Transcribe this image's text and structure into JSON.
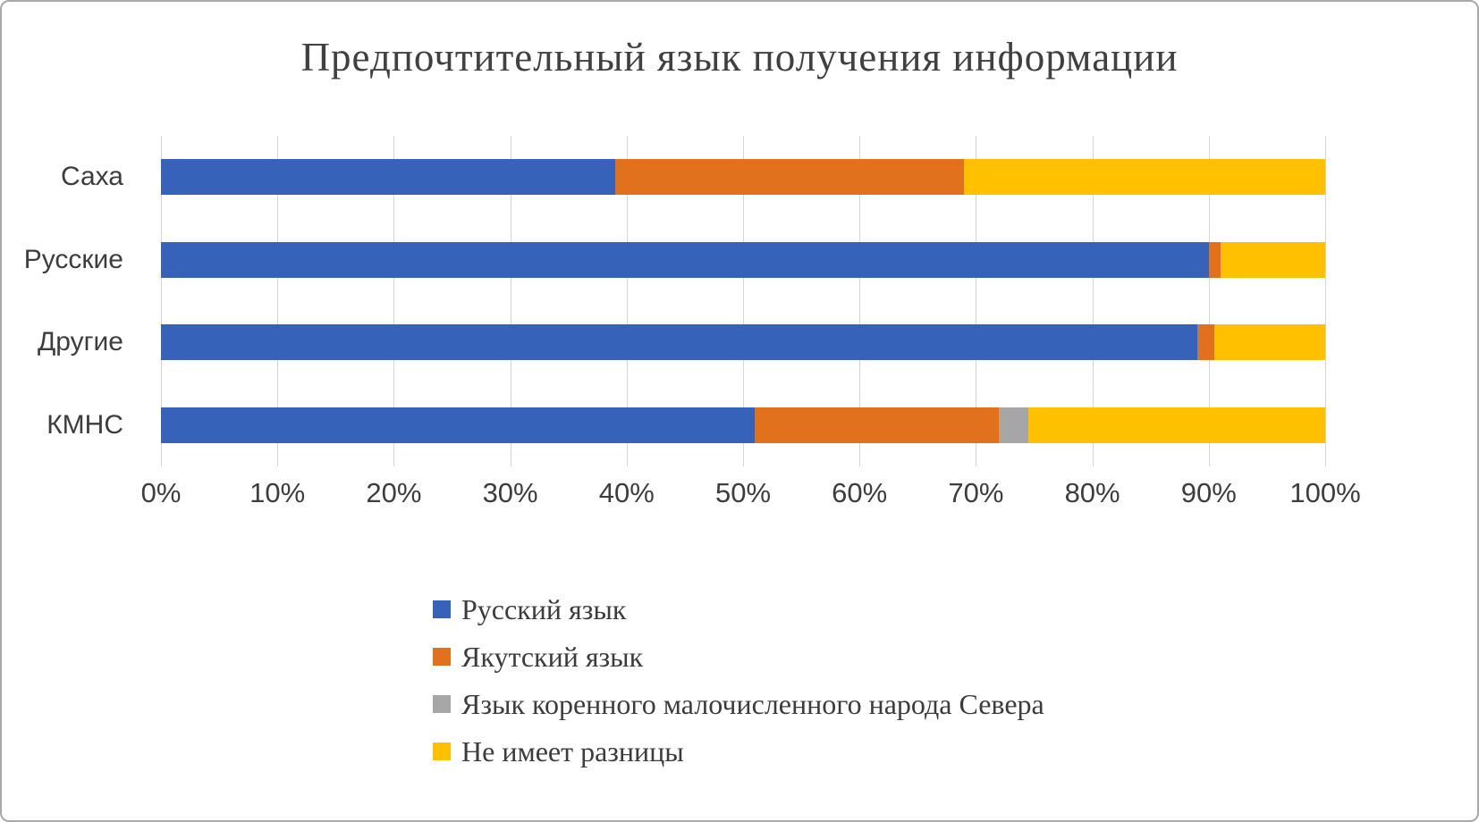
{
  "chart_data": {
    "type": "bar",
    "stacked": true,
    "orientation": "horizontal",
    "title": "Предпочтительный язык получения информации",
    "categories": [
      "Саха",
      "Русские",
      "Другие",
      "КМНС"
    ],
    "series": [
      {
        "name": "Русский язык",
        "color": "#3662ba",
        "values": [
          39,
          90,
          89,
          51
        ]
      },
      {
        "name": "Якутский язык",
        "color": "#e2711d",
        "values": [
          30,
          1,
          1.5,
          21
        ]
      },
      {
        "name": "Язык коренного малочисленного народа Севера",
        "color": "#a6a6a6",
        "values": [
          0,
          0,
          0,
          2.5
        ]
      },
      {
        "name": "Не имеет разницы",
        "color": "#ffc000",
        "values": [
          31,
          9,
          9.5,
          25.5
        ]
      }
    ],
    "x_ticks": [
      "0%",
      "10%",
      "20%",
      "30%",
      "40%",
      "50%",
      "60%",
      "70%",
      "80%",
      "90%",
      "100%"
    ],
    "xlim": [
      0,
      100
    ],
    "grid": true,
    "legend_position": "bottom"
  }
}
